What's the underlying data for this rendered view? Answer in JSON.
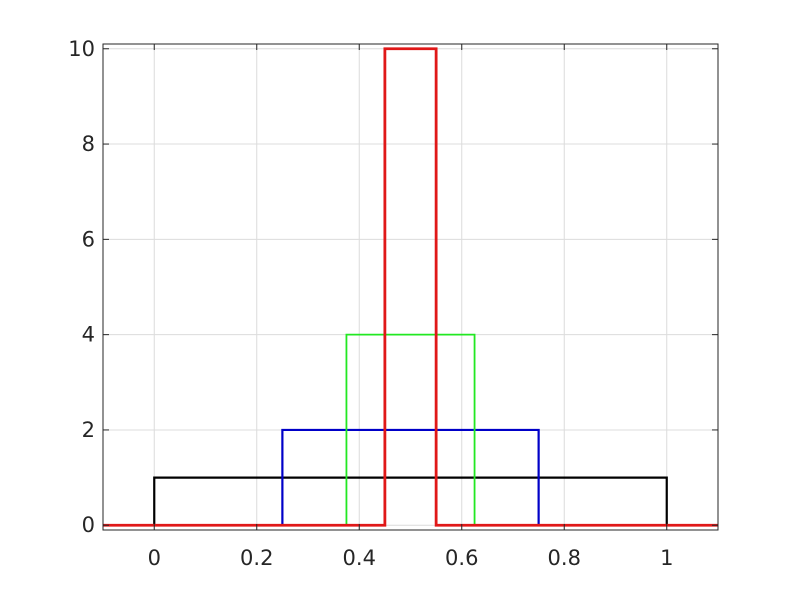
{
  "chart_data": {
    "type": "line",
    "title": "",
    "xlabel": "",
    "ylabel": "",
    "xlim": [
      -0.1,
      1.1
    ],
    "ylim": [
      -0.1,
      10.1
    ],
    "grid": true,
    "x_ticks": [
      0,
      0.2,
      0.4,
      0.6,
      0.8,
      1
    ],
    "x_tick_labels": [
      "0",
      "0.2",
      "0.4",
      "0.6",
      "0.8",
      "1"
    ],
    "y_ticks": [
      0,
      2,
      4,
      6,
      8,
      10
    ],
    "y_tick_labels": [
      "0",
      "2",
      "4",
      "6",
      "8",
      "10"
    ],
    "series": [
      {
        "color": "#000000",
        "x": [
          -0.1,
          0,
          0,
          1,
          1,
          1.1
        ],
        "y": [
          0,
          0,
          1,
          1,
          0,
          0
        ]
      },
      {
        "color": "#0000c8",
        "x": [
          -0.1,
          0.25,
          0.25,
          0.75,
          0.75,
          1.1
        ],
        "y": [
          0,
          0,
          2,
          2,
          0,
          0
        ]
      },
      {
        "color": "#22e822",
        "x": [
          -0.1,
          0.375,
          0.375,
          0.625,
          0.625,
          1.1
        ],
        "y": [
          0,
          0,
          4,
          4,
          0,
          0
        ]
      },
      {
        "color": "#e01818",
        "x": [
          -0.1,
          0.45,
          0.45,
          0.55,
          0.55,
          1.1
        ],
        "y": [
          0,
          0,
          10,
          10,
          0,
          0
        ]
      }
    ]
  }
}
